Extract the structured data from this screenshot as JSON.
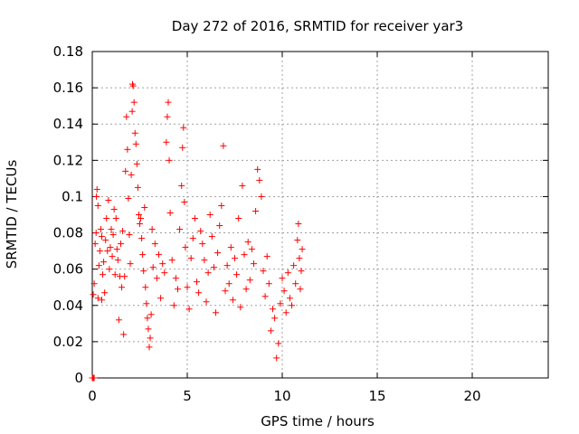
{
  "chart_data": {
    "type": "scatter",
    "title": "Day 272 of 2016, SRMTID for receiver yar3",
    "xlabel": "GPS time / hours",
    "ylabel": "SRMTID / TECUs",
    "xlim": [
      0,
      24
    ],
    "ylim": [
      0,
      0.18
    ],
    "xticks": [
      0,
      5,
      10,
      15,
      20
    ],
    "xtick_labels": [
      "0",
      "5",
      "10",
      "15",
      "20"
    ],
    "yticks": [
      0,
      0.02,
      0.04,
      0.06,
      0.08,
      0.1,
      0.12,
      0.14,
      0.16,
      0.18
    ],
    "ytick_labels": [
      "0",
      "0.02",
      "0.04",
      "0.06",
      "0.08",
      "0.1",
      "0.12",
      "0.14",
      "0.16",
      "0.18"
    ],
    "grid": true,
    "marker": "+",
    "color": "#ff0000",
    "series": [
      {
        "name": "SRMTID",
        "points": [
          [
            0.0,
            0.0
          ],
          [
            0.02,
            0.0
          ],
          [
            0.05,
            0.0
          ],
          [
            0.08,
            0.0
          ],
          [
            0.1,
            0.0
          ],
          [
            0.05,
            0.046
          ],
          [
            0.1,
            0.052
          ],
          [
            0.15,
            0.074
          ],
          [
            0.2,
            0.08
          ],
          [
            0.22,
            0.1
          ],
          [
            0.25,
            0.104
          ],
          [
            0.3,
            0.095
          ],
          [
            0.3,
            0.044
          ],
          [
            0.35,
            0.062
          ],
          [
            0.4,
            0.07
          ],
          [
            0.45,
            0.082
          ],
          [
            0.5,
            0.078
          ],
          [
            0.5,
            0.043
          ],
          [
            0.55,
            0.057
          ],
          [
            0.6,
            0.064
          ],
          [
            0.65,
            0.047
          ],
          [
            0.7,
            0.076
          ],
          [
            0.75,
            0.088
          ],
          [
            0.8,
            0.07
          ],
          [
            0.85,
            0.098
          ],
          [
            0.9,
            0.06
          ],
          [
            0.95,
            0.072
          ],
          [
            1.0,
            0.082
          ],
          [
            1.05,
            0.067
          ],
          [
            1.1,
            0.079
          ],
          [
            1.15,
            0.093
          ],
          [
            1.2,
            0.057
          ],
          [
            1.25,
            0.088
          ],
          [
            1.3,
            0.071
          ],
          [
            1.35,
            0.065
          ],
          [
            1.4,
            0.032
          ],
          [
            1.45,
            0.056
          ],
          [
            1.5,
            0.074
          ],
          [
            1.55,
            0.05
          ],
          [
            1.6,
            0.081
          ],
          [
            1.65,
            0.024
          ],
          [
            1.7,
            0.056
          ],
          [
            1.75,
            0.114
          ],
          [
            1.8,
            0.144
          ],
          [
            1.85,
            0.126
          ],
          [
            1.9,
            0.099
          ],
          [
            1.95,
            0.079
          ],
          [
            2.0,
            0.063
          ],
          [
            2.05,
            0.112
          ],
          [
            2.1,
            0.147
          ],
          [
            2.12,
            0.162
          ],
          [
            2.15,
            0.161
          ],
          [
            2.2,
            0.152
          ],
          [
            2.25,
            0.135
          ],
          [
            2.3,
            0.129
          ],
          [
            2.35,
            0.118
          ],
          [
            2.4,
            0.105
          ],
          [
            2.45,
            0.09
          ],
          [
            2.5,
            0.085
          ],
          [
            2.55,
            0.088
          ],
          [
            2.6,
            0.077
          ],
          [
            2.65,
            0.068
          ],
          [
            2.7,
            0.059
          ],
          [
            2.75,
            0.094
          ],
          [
            2.8,
            0.05
          ],
          [
            2.85,
            0.041
          ],
          [
            2.9,
            0.033
          ],
          [
            2.95,
            0.027
          ],
          [
            3.0,
            0.017
          ],
          [
            3.05,
            0.022
          ],
          [
            3.1,
            0.035
          ],
          [
            3.15,
            0.082
          ],
          [
            3.2,
            0.061
          ],
          [
            3.3,
            0.074
          ],
          [
            3.4,
            0.055
          ],
          [
            3.5,
            0.068
          ],
          [
            3.6,
            0.044
          ],
          [
            3.7,
            0.063
          ],
          [
            3.8,
            0.058
          ],
          [
            3.9,
            0.13
          ],
          [
            3.95,
            0.144
          ],
          [
            4.0,
            0.152
          ],
          [
            4.05,
            0.12
          ],
          [
            4.1,
            0.091
          ],
          [
            4.2,
            0.065
          ],
          [
            4.3,
            0.04
          ],
          [
            4.4,
            0.055
          ],
          [
            4.5,
            0.049
          ],
          [
            4.6,
            0.082
          ],
          [
            4.7,
            0.106
          ],
          [
            4.75,
            0.127
          ],
          [
            4.8,
            0.138
          ],
          [
            4.85,
            0.097
          ],
          [
            4.9,
            0.072
          ],
          [
            5.0,
            0.05
          ],
          [
            5.1,
            0.038
          ],
          [
            5.2,
            0.066
          ],
          [
            5.3,
            0.077
          ],
          [
            5.4,
            0.088
          ],
          [
            5.5,
            0.053
          ],
          [
            5.6,
            0.047
          ],
          [
            5.7,
            0.081
          ],
          [
            5.8,
            0.074
          ],
          [
            5.9,
            0.065
          ],
          [
            6.0,
            0.042
          ],
          [
            6.1,
            0.058
          ],
          [
            6.2,
            0.09
          ],
          [
            6.3,
            0.078
          ],
          [
            6.4,
            0.061
          ],
          [
            6.5,
            0.036
          ],
          [
            6.6,
            0.069
          ],
          [
            6.7,
            0.084
          ],
          [
            6.8,
            0.095
          ],
          [
            6.9,
            0.128
          ],
          [
            7.0,
            0.048
          ],
          [
            7.1,
            0.062
          ],
          [
            7.2,
            0.052
          ],
          [
            7.3,
            0.072
          ],
          [
            7.4,
            0.043
          ],
          [
            7.5,
            0.066
          ],
          [
            7.6,
            0.057
          ],
          [
            7.7,
            0.088
          ],
          [
            7.8,
            0.039
          ],
          [
            7.9,
            0.106
          ],
          [
            8.0,
            0.068
          ],
          [
            8.1,
            0.049
          ],
          [
            8.2,
            0.075
          ],
          [
            8.3,
            0.054
          ],
          [
            8.4,
            0.071
          ],
          [
            8.5,
            0.063
          ],
          [
            8.6,
            0.092
          ],
          [
            8.7,
            0.115
          ],
          [
            8.8,
            0.109
          ],
          [
            8.9,
            0.1
          ],
          [
            9.0,
            0.059
          ],
          [
            9.1,
            0.045
          ],
          [
            9.2,
            0.067
          ],
          [
            9.3,
            0.052
          ],
          [
            9.4,
            0.026
          ],
          [
            9.5,
            0.038
          ],
          [
            9.6,
            0.033
          ],
          [
            9.7,
            0.011
          ],
          [
            9.8,
            0.019
          ],
          [
            9.9,
            0.041
          ],
          [
            10.0,
            0.055
          ],
          [
            10.1,
            0.048
          ],
          [
            10.2,
            0.036
          ],
          [
            10.3,
            0.058
          ],
          [
            10.4,
            0.044
          ],
          [
            10.5,
            0.04
          ],
          [
            10.6,
            0.062
          ],
          [
            10.7,
            0.052
          ],
          [
            10.8,
            0.076
          ],
          [
            10.85,
            0.085
          ],
          [
            10.9,
            0.066
          ],
          [
            10.95,
            0.049
          ],
          [
            11.0,
            0.059
          ],
          [
            11.05,
            0.071
          ]
        ]
      }
    ]
  }
}
